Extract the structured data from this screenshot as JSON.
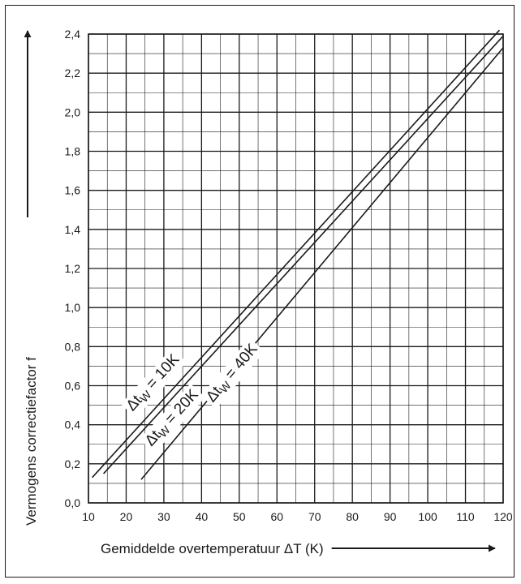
{
  "chart_data": {
    "type": "line",
    "title": "",
    "xlabel": "Gemiddelde overtemperatuur ΔT (K)",
    "ylabel": "Vermogens correctiefactor f",
    "xlim": [
      10,
      120
    ],
    "ylim": [
      0,
      2.4
    ],
    "x_ticks": [
      10,
      20,
      30,
      40,
      50,
      60,
      70,
      80,
      90,
      100,
      110,
      120
    ],
    "x_tick_labels": [
      "10",
      "20",
      "30",
      "40",
      "50",
      "60",
      "70",
      "80",
      "90",
      "100",
      "110",
      "120"
    ],
    "y_ticks": [
      0,
      0.2,
      0.4,
      0.6,
      0.8,
      1.0,
      1.2,
      1.4,
      1.6,
      1.8,
      2.0,
      2.2,
      2.4
    ],
    "y_tick_labels": [
      "0,0",
      "0,2",
      "0,4",
      "0,6",
      "0,8",
      "1,0",
      "1,2",
      "1,4",
      "1,6",
      "1,8",
      "2,0",
      "2,2",
      "2,4"
    ],
    "grid": true,
    "series": [
      {
        "name": "Δtw = 10K",
        "label_prefix": "Δt",
        "label_sub": "W",
        "label_suffix": " = 10K",
        "x": [
          11,
          119
        ],
        "y": [
          0.13,
          2.42
        ],
        "label_at": [
          28,
          0.6
        ]
      },
      {
        "name": "Δtw = 20K",
        "label_prefix": "Δt",
        "label_sub": "W",
        "label_suffix": " = 20K",
        "x": [
          14,
          120
        ],
        "y": [
          0.15,
          2.39
        ],
        "label_at": [
          33,
          0.42
        ]
      },
      {
        "name": "Δtw = 40K",
        "label_prefix": "Δt",
        "label_sub": "W",
        "label_suffix": " = 40K",
        "x": [
          24,
          120
        ],
        "y": [
          0.12,
          2.33
        ],
        "label_at": [
          49,
          0.65
        ]
      }
    ]
  }
}
